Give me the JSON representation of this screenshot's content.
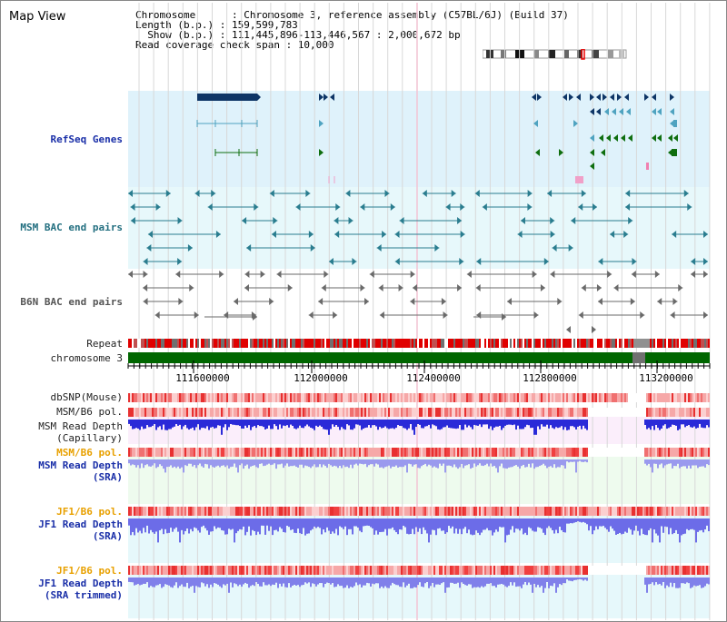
{
  "page": {
    "title": "Map View"
  },
  "info": {
    "line1": "Chromosome      : Chromosome 3, reference assembly (C57BL/6J) (Build 37)",
    "line2": "Length (b.p.) : 159,599,783",
    "line3": "  Show (b.p.) : 111,445,896-113,446,567 : 2,000,672 bp",
    "line4": "Read coverage check span : 10,000"
  },
  "tracks": {
    "refseq": "RefSeq Genes",
    "msm_bac": "MSM BAC end pairs",
    "b6n_bac": "B6N BAC end pairs",
    "repeat": "Repeat",
    "chrom": "chromosome 3",
    "dbsnp": "dbSNP(Mouse)",
    "msm_b6_pol": "MSM/B6 pol.",
    "msm_depth_cap": "MSM Read Depth\n(Capillary)",
    "msm_b6_pol2": "MSM/B6 pol.",
    "msm_depth_sra": "MSM Read Depth\n(SRA)",
    "jf1_b6_pol": "JF1/B6 pol.",
    "jf1_depth_sra": "JF1 Read Depth\n(SRA)",
    "jf1_b6_pol2": "JF1/B6 pol.",
    "jf1_depth_trim": "JF1 Read Depth\n(SRA trimmed)"
  },
  "axis": {
    "ticks": [
      "111600000",
      "112000000",
      "112400000",
      "112800000",
      "113200000"
    ]
  },
  "colors": {
    "refseq_bg": "#dff2fb",
    "msm_bg": "#e7f8fb",
    "gene_navy": "#0e3566",
    "gene_teal": "#4fa3c0",
    "gene_green": "#0f6e0f",
    "repeat_red": "#e00000",
    "chrom_green": "#006600"
  }
}
